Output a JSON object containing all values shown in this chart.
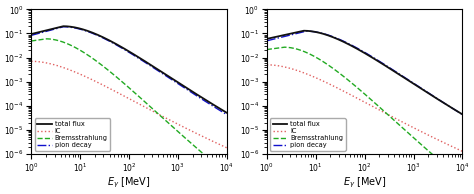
{
  "xlim_min": 1.0,
  "xlim_max": 10000.0,
  "panel1_ylim": [
    1e-06,
    1.0
  ],
  "panel2_ylim": [
    1e-06,
    1.0
  ],
  "colors": {
    "total": "#111111",
    "IC": "#e06060",
    "brem": "#22aa22",
    "pion": "#1111cc"
  },
  "legend_labels": [
    "total flux",
    "IC",
    "Bremsstrahlung",
    "pion decay"
  ],
  "xlabel": "$E_{\\gamma}$ [MeV]",
  "panel1": {
    "total": {
      "peak_logE": 0.65,
      "peak_val": 0.2,
      "low_slope": 0.5,
      "high_slope": -1.0,
      "sigma_hi": 1.1
    },
    "pion": {
      "peak_logE": 0.65,
      "peak_val": 0.19,
      "low_slope": 0.55,
      "high_slope": -1.02,
      "sigma_hi": 1.1
    },
    "brem": {
      "peak_logE": 0.3,
      "peak_val": 0.06,
      "low_slope": 0.3,
      "high_slope": -1.45,
      "sigma_hi": 1.0
    },
    "IC": {
      "peak_logE": 0.0,
      "peak_val": 0.007,
      "low_slope": 0.05,
      "high_slope": -0.82,
      "sigma_hi": 1.2
    }
  },
  "panel2": {
    "total": {
      "peak_logE": 0.75,
      "peak_val": 0.13,
      "low_slope": 0.45,
      "high_slope": -1.0,
      "sigma_hi": 1.1
    },
    "pion": {
      "peak_logE": 0.8,
      "peak_val": 0.125,
      "low_slope": 0.5,
      "high_slope": -1.02,
      "sigma_hi": 1.1
    },
    "brem": {
      "peak_logE": 0.35,
      "peak_val": 0.027,
      "low_slope": 0.28,
      "high_slope": -1.45,
      "sigma_hi": 1.0
    },
    "IC": {
      "peak_logE": 0.0,
      "peak_val": 0.005,
      "low_slope": 0.05,
      "high_slope": -0.82,
      "sigma_hi": 1.2
    }
  }
}
